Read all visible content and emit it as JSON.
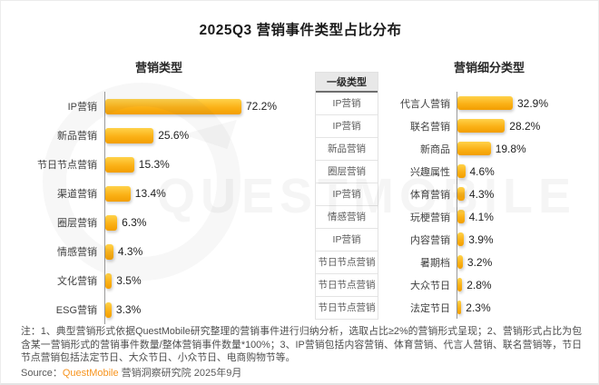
{
  "title": "2025Q3 营销事件类型占比分布",
  "watermark": {
    "text": "QUESTMOBILE",
    "logo": "questmobile-ring-logo"
  },
  "colors": {
    "bar_gradient_top": "#FFD24A",
    "bar_gradient_mid": "#FBB117",
    "bar_gradient_bottom": "#F29E00",
    "axis_line": "#9A9A9A",
    "table_header_bg": "#E8E8E8",
    "brand_orange": "#F7941E",
    "note_text": "#4D4D4D"
  },
  "chart_data": [
    {
      "type": "bar",
      "orientation": "horizontal",
      "title": "营销类型",
      "categories": [
        "IP营销",
        "新品营销",
        "节日节点营销",
        "渠道营销",
        "圈层营销",
        "情感营销",
        "文化营销",
        "ESG营销"
      ],
      "values": [
        72.2,
        25.6,
        15.3,
        13.4,
        6.3,
        4.3,
        3.5,
        3.3
      ],
      "unit": "%",
      "xlim": [
        0,
        80
      ],
      "grid": false,
      "legend": "none",
      "value_labels_shown": true
    },
    {
      "type": "bar",
      "orientation": "horizontal",
      "title": "营销细分类型",
      "categories": [
        "代言人营销",
        "联名营销",
        "新商品",
        "兴趣属性",
        "体育营销",
        "玩梗营销",
        "内容营销",
        "暑期档",
        "大众节日",
        "法定节日"
      ],
      "values": [
        32.9,
        28.2,
        19.8,
        4.6,
        4.3,
        4.1,
        3.9,
        3.2,
        2.8,
        2.3
      ],
      "unit": "%",
      "xlim": [
        0,
        40
      ],
      "grid": false,
      "legend": "none",
      "value_labels_shown": true
    }
  ],
  "mapping_table": {
    "header": "一级类型",
    "rows": [
      "IP营销",
      "IP营销",
      "新品营销",
      "圈层营销",
      "IP营销",
      "情感营销",
      "IP营销",
      "节日节点营销",
      "节日节点营销",
      "节日节点营销"
    ]
  },
  "notes": {
    "text": "注：1、典型营销形式依据QuestMobile研究整理的营销事件进行归纳分析，选取占比≥2%的营销形式呈现；2、营销形式占比为包含某一营销形式的营销事件数量/整体营销事件数量*100%；3、IP营销包括内容营销、体育营销、代言人营销、联名营销等，节日节点营销包括法定节日、大众节日、小众节日、电商购物节等。"
  },
  "source": {
    "prefix": "Source：",
    "brand": "QuestMobile",
    "suffix": " 营销洞察研究院 2025年9月"
  }
}
